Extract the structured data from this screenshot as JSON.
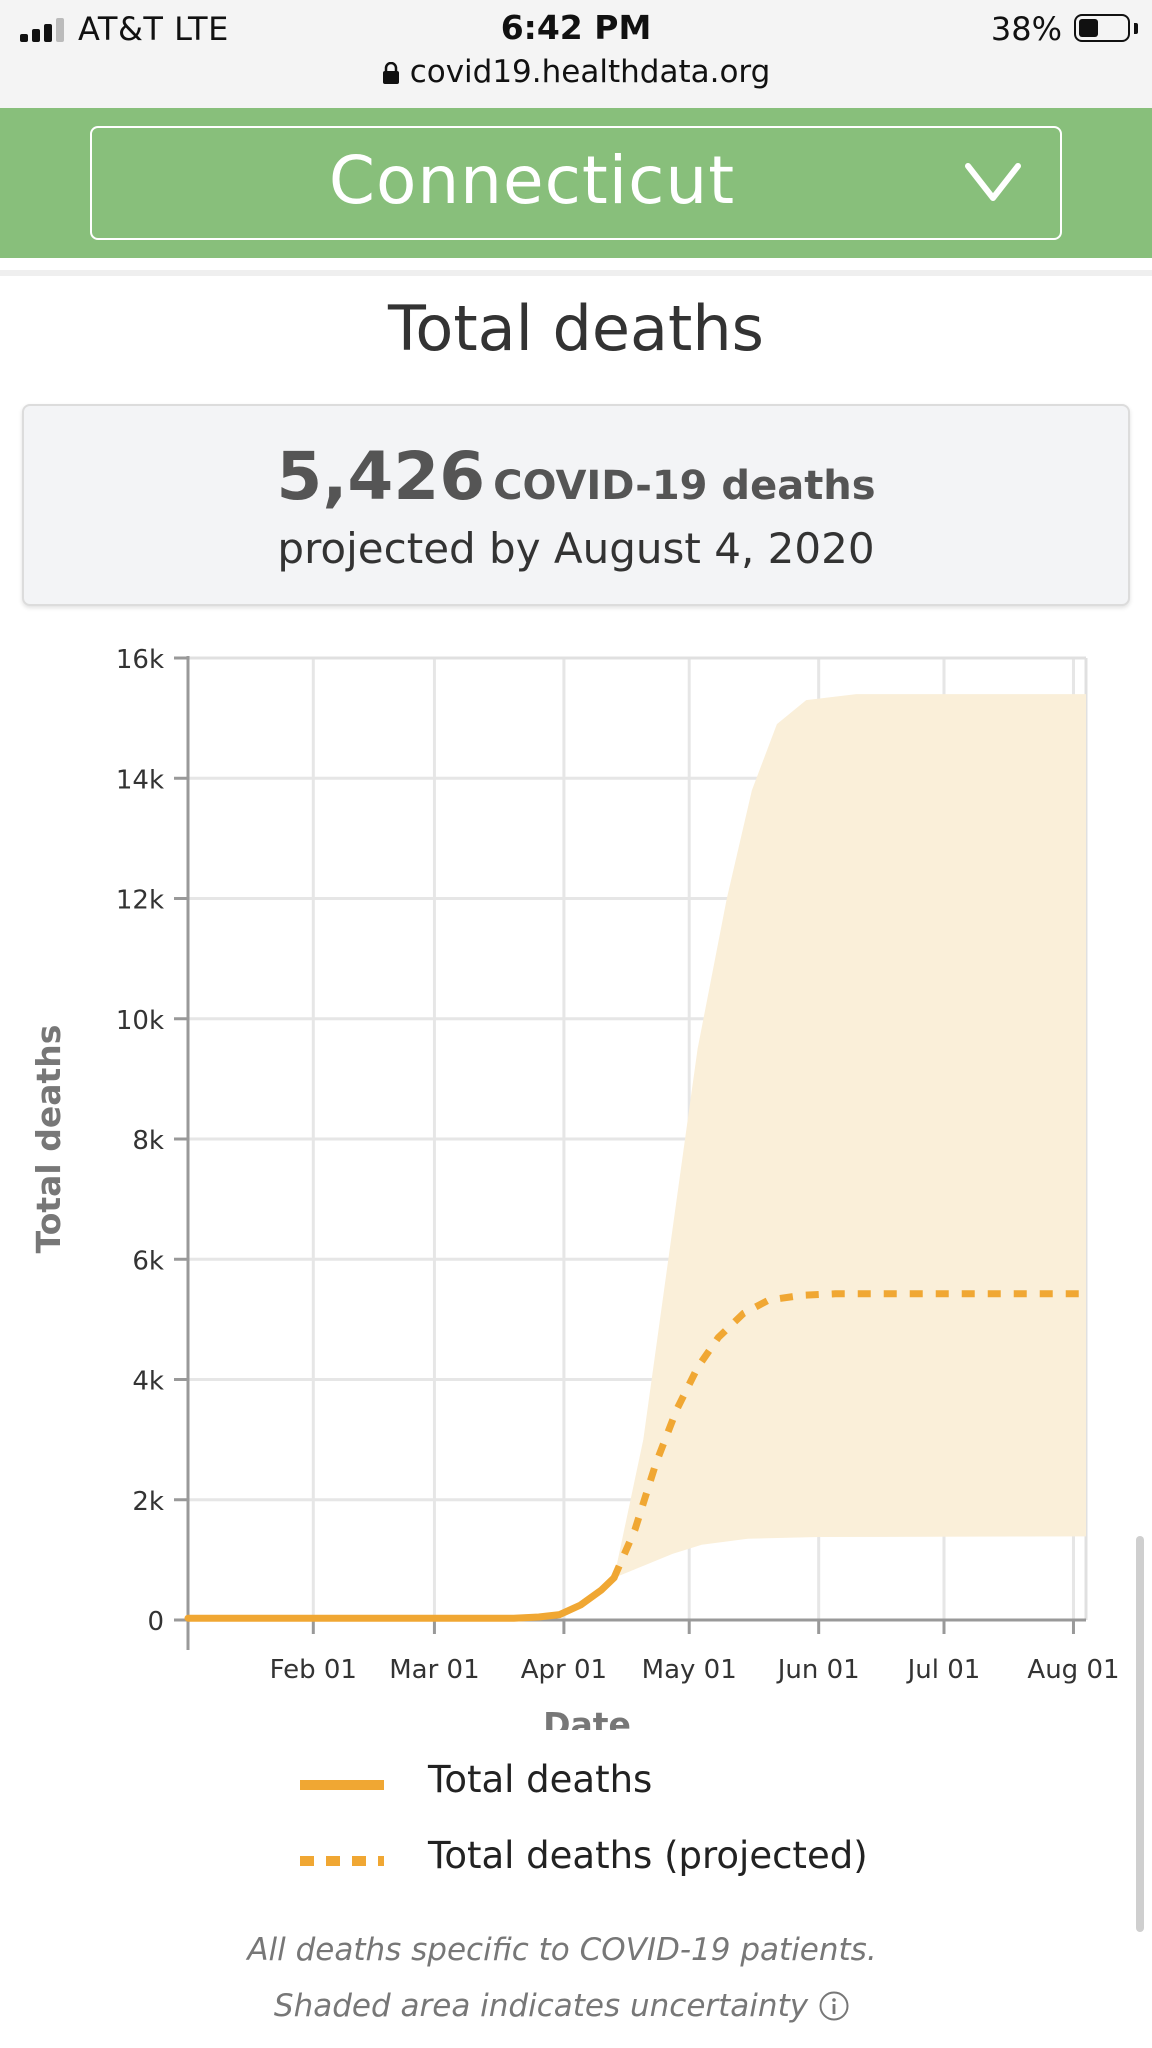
{
  "status_bar": {
    "carrier": "AT&T  LTE",
    "time": "6:42 PM",
    "battery_percent": "38%",
    "battery_level": 0.38,
    "url": "covid19.healthdata.org"
  },
  "location": {
    "selected": "Connecticut",
    "icon": "chevron-down-icon"
  },
  "section_title": "Total deaths",
  "summary": {
    "number": "5,426",
    "label": "COVID-19 deaths",
    "subtitle": "projected by August 4, 2020"
  },
  "chart_data": {
    "type": "line",
    "xlabel": "Date",
    "ylabel": "Total deaths",
    "x_ticks": [
      "Feb 01",
      "Mar 01",
      "Apr 01",
      "May 01",
      "Jun 01",
      "Jul 01",
      "Aug 01"
    ],
    "x_tick_dates": [
      "2020-02-01",
      "2020-03-01",
      "2020-04-01",
      "2020-05-01",
      "2020-06-01",
      "2020-07-01",
      "2020-08-01"
    ],
    "x_range": [
      "2020-01-02",
      "2020-08-04"
    ],
    "y_ticks": [
      "0",
      "2k",
      "4k",
      "6k",
      "8k",
      "10k",
      "12k",
      "14k",
      "16k"
    ],
    "y_tick_values": [
      0,
      2000,
      4000,
      6000,
      8000,
      10000,
      12000,
      14000,
      16000
    ],
    "ylim": [
      0,
      16000
    ],
    "grid": true,
    "series": [
      {
        "name": "Total deaths",
        "style": "solid",
        "color": "#f0a733",
        "points": [
          [
            "2020-01-02",
            30
          ],
          [
            "2020-02-01",
            30
          ],
          [
            "2020-03-01",
            30
          ],
          [
            "2020-03-20",
            30
          ],
          [
            "2020-03-26",
            50
          ],
          [
            "2020-03-31",
            90
          ],
          [
            "2020-04-05",
            250
          ],
          [
            "2020-04-10",
            500
          ],
          [
            "2020-04-13",
            700
          ]
        ]
      },
      {
        "name": "Total deaths (projected)",
        "style": "dashed",
        "color": "#f0a733",
        "points": [
          [
            "2020-04-13",
            700
          ],
          [
            "2020-04-18",
            1500
          ],
          [
            "2020-04-23",
            2600
          ],
          [
            "2020-04-28",
            3500
          ],
          [
            "2020-05-03",
            4200
          ],
          [
            "2020-05-08",
            4700
          ],
          [
            "2020-05-14",
            5100
          ],
          [
            "2020-05-20",
            5320
          ],
          [
            "2020-05-28",
            5400
          ],
          [
            "2020-06-05",
            5426
          ],
          [
            "2020-08-04",
            5426
          ]
        ]
      }
    ],
    "uncertainty": {
      "color": "#faefd9",
      "upper": [
        [
          "2020-04-13",
          700
        ],
        [
          "2020-04-20",
          3000
        ],
        [
          "2020-04-27",
          6500
        ],
        [
          "2020-05-03",
          9500
        ],
        [
          "2020-05-10",
          12000
        ],
        [
          "2020-05-16",
          13800
        ],
        [
          "2020-05-22",
          14900
        ],
        [
          "2020-05-29",
          15300
        ],
        [
          "2020-06-10",
          15400
        ],
        [
          "2020-08-04",
          15400
        ]
      ],
      "lower": [
        [
          "2020-04-13",
          700
        ],
        [
          "2020-04-20",
          900
        ],
        [
          "2020-04-27",
          1100
        ],
        [
          "2020-05-04",
          1250
        ],
        [
          "2020-05-15",
          1350
        ],
        [
          "2020-06-01",
          1380
        ],
        [
          "2020-08-04",
          1390
        ]
      ]
    }
  },
  "legend": [
    {
      "label": "Total deaths",
      "style": "solid"
    },
    {
      "label": "Total deaths (projected)",
      "style": "dashed"
    }
  ],
  "notes": {
    "line1": "All deaths specific to COVID-19 patients.",
    "line2": "Shaded area indicates uncertainty",
    "icon": "info-icon"
  }
}
